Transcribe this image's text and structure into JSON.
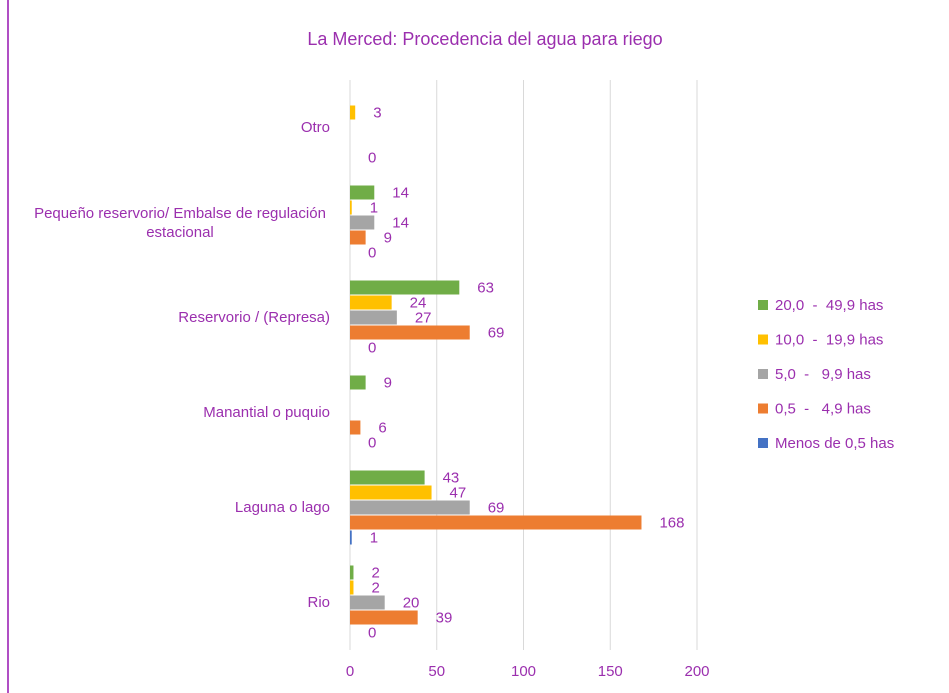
{
  "chart_data": {
    "type": "hbar",
    "title": "La Merced: Procedencia del agua para riego",
    "categories": [
      "Otro",
      "Pequeño reservorio/ Embalse de regulación estacional",
      "Reservorio / (Represa)",
      "Manantial o puquio",
      "Laguna o lago",
      "Rio"
    ],
    "series": [
      {
        "name": "20,0  -  49,9 has",
        "color": "#70ad47",
        "values": [
          null,
          14,
          63,
          9,
          43,
          2
        ]
      },
      {
        "name": "10,0  -  19,9 has",
        "color": "#ffc000",
        "values": [
          3,
          1,
          24,
          null,
          47,
          2
        ]
      },
      {
        "name": "5,0  -   9,9 has",
        "color": "#a5a5a5",
        "values": [
          null,
          14,
          27,
          null,
          69,
          20
        ]
      },
      {
        "name": "0,5  -   4,9 has",
        "color": "#ed7d31",
        "values": [
          null,
          9,
          69,
          6,
          168,
          39
        ]
      },
      {
        "name": "Menos de 0,5 has",
        "color": "#4472c4",
        "values": [
          0,
          0,
          0,
          0,
          1,
          0
        ]
      }
    ],
    "xlim": [
      0,
      200
    ],
    "xticks": [
      0,
      50,
      100,
      150,
      200
    ],
    "grid": true,
    "legend": "right"
  }
}
